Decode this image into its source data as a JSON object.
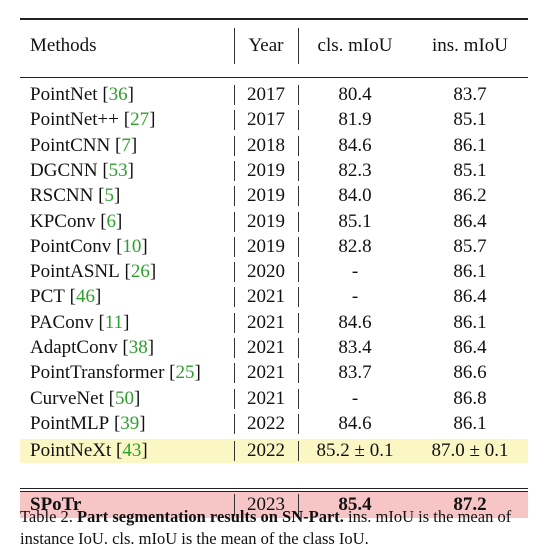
{
  "header": {
    "methods": "Methods",
    "year": "Year",
    "cls": "cls. mIoU",
    "ins": "ins. mIoU"
  },
  "rows": [
    {
      "method": "PointNet",
      "ref": "36",
      "year": "2017",
      "cls": "80.4",
      "ins": "83.7"
    },
    {
      "method": "PointNet++",
      "ref": "27",
      "year": "2017",
      "cls": "81.9",
      "ins": "85.1"
    },
    {
      "method": "PointCNN",
      "ref": "7",
      "year": "2018",
      "cls": "84.6",
      "ins": "86.1"
    },
    {
      "method": "DGCNN",
      "ref": "53",
      "year": "2019",
      "cls": "82.3",
      "ins": "85.1"
    },
    {
      "method": "RSCNN",
      "ref": "5",
      "year": "2019",
      "cls": "84.0",
      "ins": "86.2"
    },
    {
      "method": "KPConv",
      "ref": "6",
      "year": "2019",
      "cls": "85.1",
      "ins": "86.4"
    },
    {
      "method": "PointConv",
      "ref": "10",
      "year": "2019",
      "cls": "82.8",
      "ins": "85.7"
    },
    {
      "method": "PointASNL",
      "ref": "26",
      "year": "2020",
      "cls": "-",
      "ins": "86.1"
    },
    {
      "method": "PCT",
      "ref": "46",
      "year": "2021",
      "cls": "-",
      "ins": "86.4"
    },
    {
      "method": "PAConv",
      "ref": "11",
      "year": "2021",
      "cls": "84.6",
      "ins": "86.1"
    },
    {
      "method": "AdaptConv",
      "ref": "38",
      "year": "2021",
      "cls": "83.4",
      "ins": "86.4"
    },
    {
      "method": "PointTransformer",
      "ref": "25",
      "year": "2021",
      "cls": "83.7",
      "ins": "86.6"
    },
    {
      "method": "CurveNet",
      "ref": "50",
      "year": "2021",
      "cls": "-",
      "ins": "86.8"
    },
    {
      "method": "PointMLP",
      "ref": "39",
      "year": "2022",
      "cls": "84.6",
      "ins": "86.1"
    },
    {
      "method": "PointNeXt",
      "ref": "43",
      "year": "2022",
      "cls": "85.2 ± 0.1",
      "ins": "87.0 ± 0.1"
    }
  ],
  "ours": {
    "method": "SPoTr",
    "year": "2023",
    "cls": "85.4",
    "ins": "87.2"
  },
  "colors": {
    "highlight_row": "#fbf7c4",
    "ours_row": "#f7c5c6",
    "ref_green": "#2ca02c"
  },
  "caption": {
    "label": "Table 2.",
    "bold": "Part segmentation results on SN-Part.",
    "text": "ins. mIoU is the mean of instance IoU. cls. mIoU is the mean of the class IoU."
  }
}
